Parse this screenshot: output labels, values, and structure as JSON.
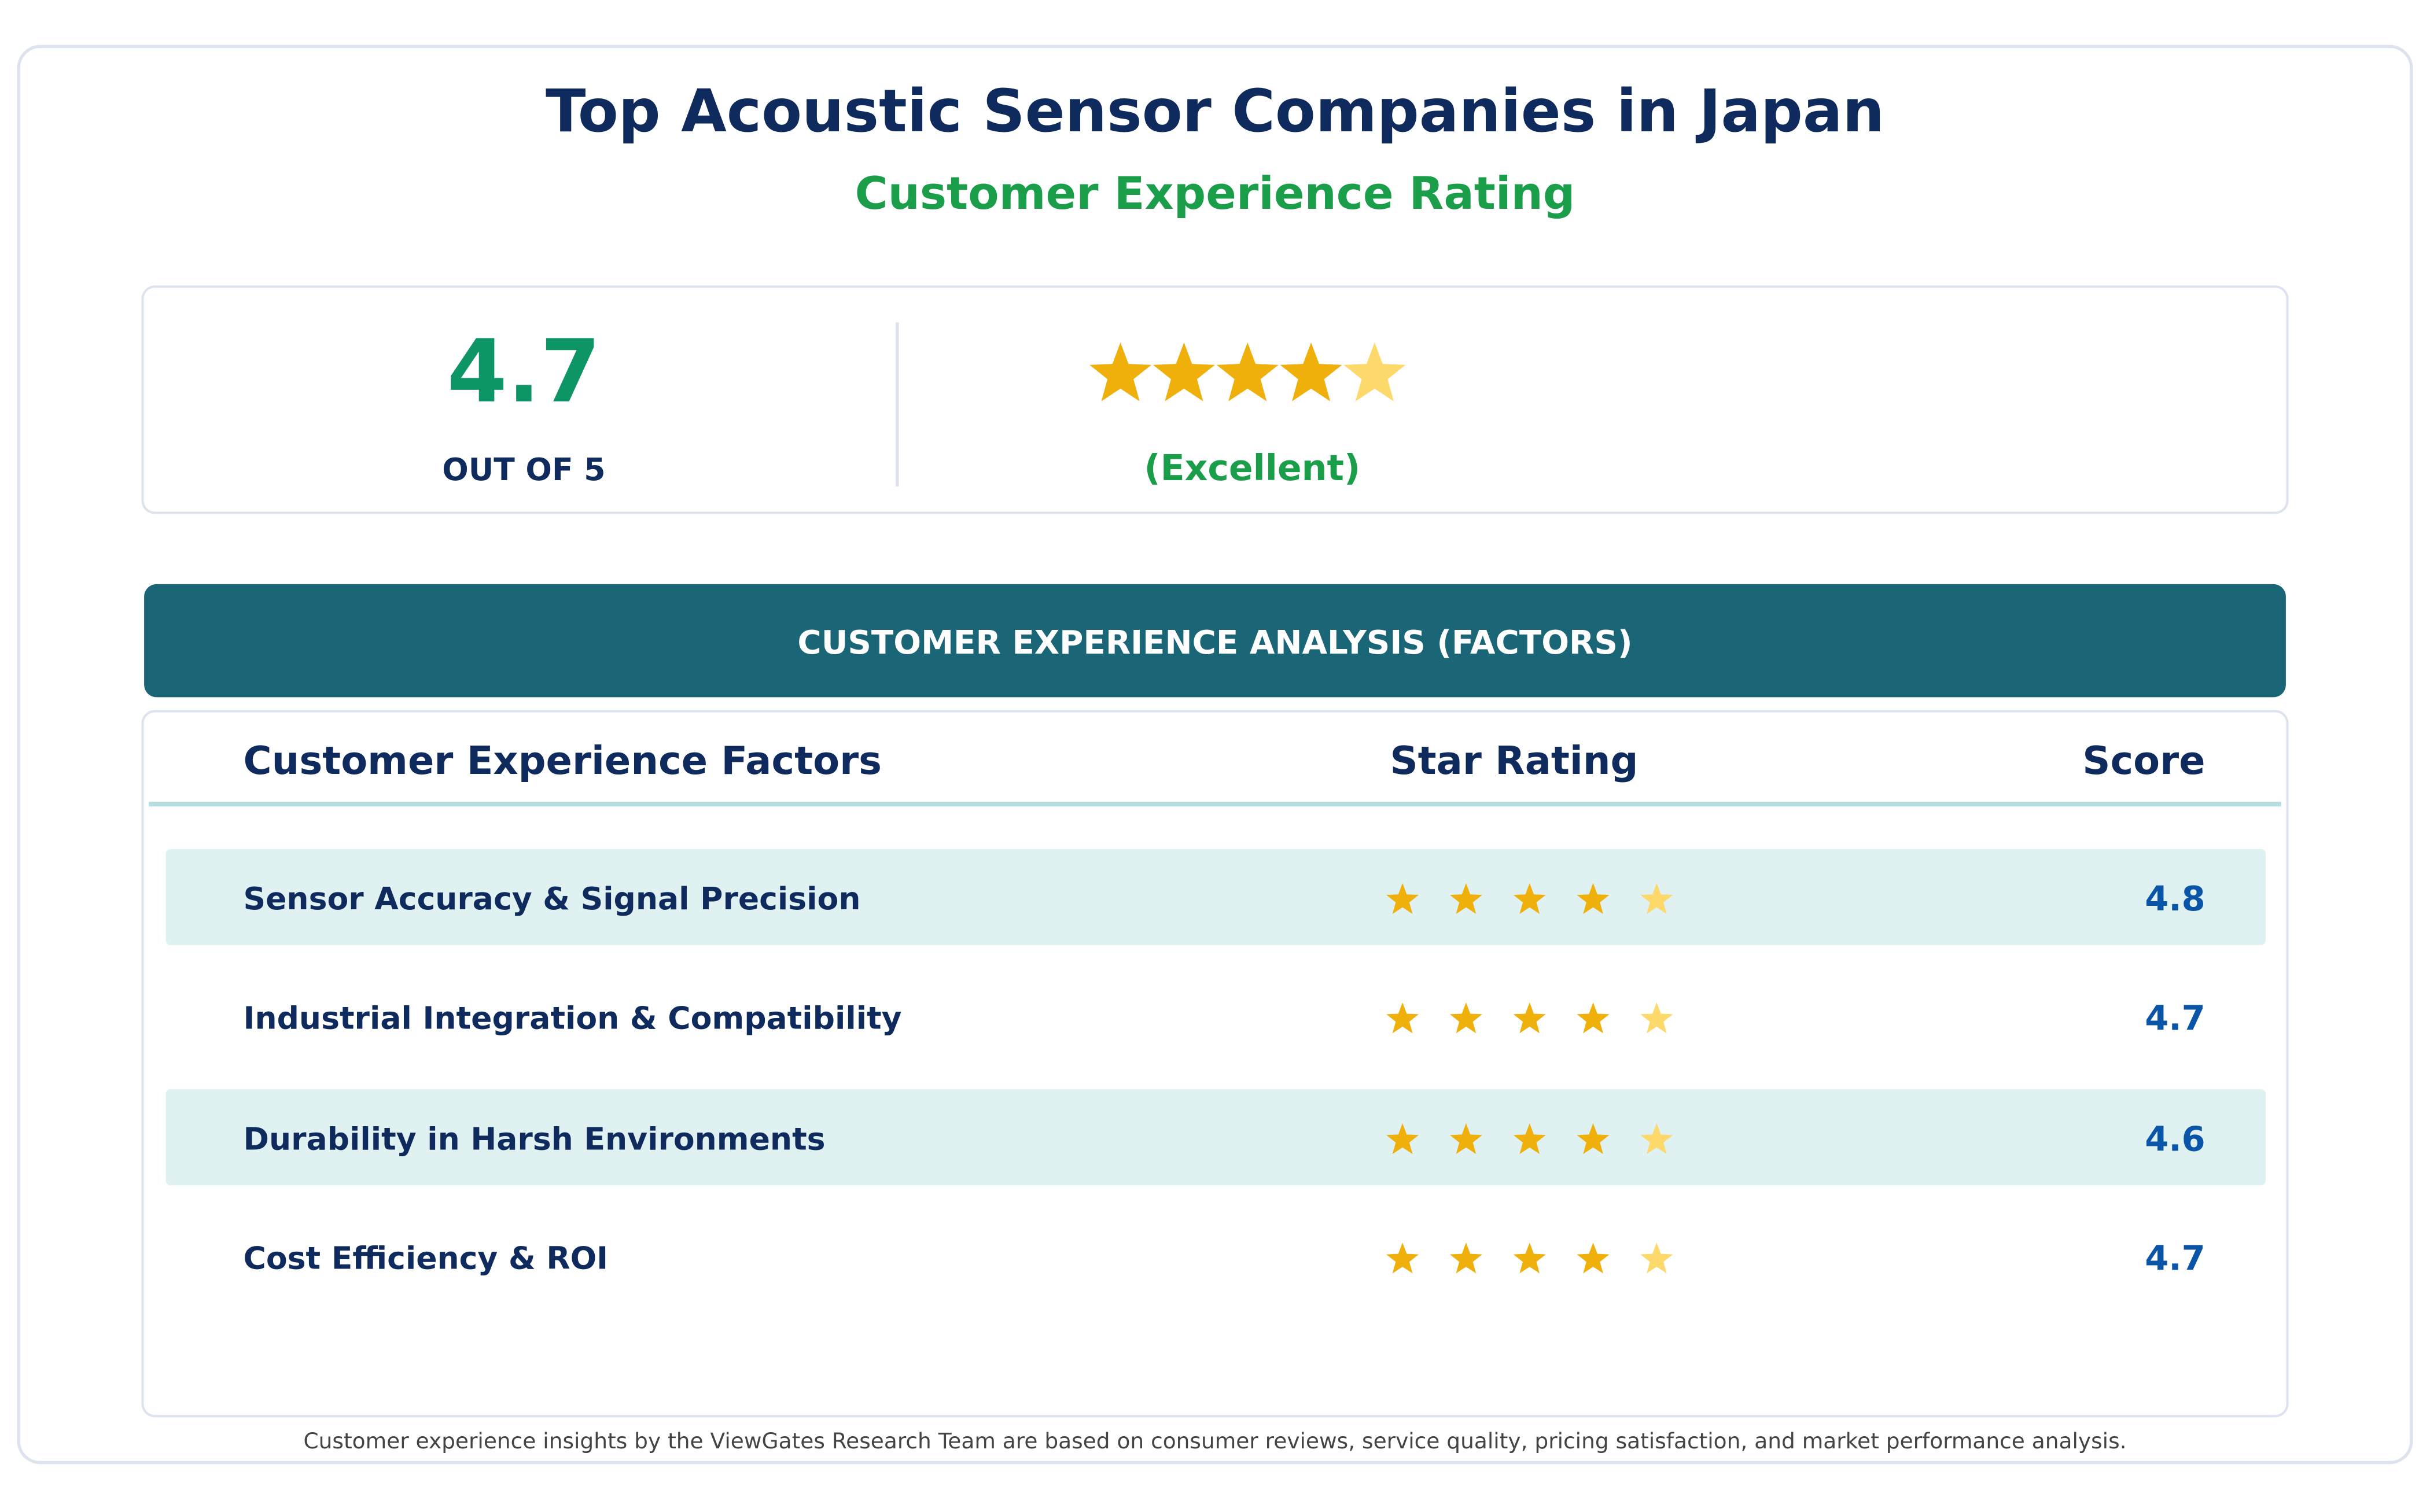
{
  "header": {
    "title": "Top Acoustic Sensor Companies in Japan",
    "subtitle": "Customer Experience Rating"
  },
  "summary": {
    "score": 4.7,
    "scale_label": "OUT OF 5",
    "verdict": "(Excellent)"
  },
  "analysis": {
    "banner": "CUSTOMER EXPERIENCE ANALYSIS (FACTORS)",
    "columns": [
      "Customer Experience Factors",
      "Star Rating",
      "Score"
    ],
    "rows": [
      {
        "factor": "Sensor Accuracy & Signal Precision",
        "score": 4.8
      },
      {
        "factor": "Industrial Integration & Compatibility",
        "score": 4.7
      },
      {
        "factor": "Durability in Harsh Environments",
        "score": 4.6
      },
      {
        "factor": "Cost Efficiency & ROI",
        "score": 4.7
      }
    ]
  },
  "footer": "Customer experience insights by the ViewGates Research Team are based on consumer reviews, service quality, pricing satisfaction, and market performance analysis."
}
